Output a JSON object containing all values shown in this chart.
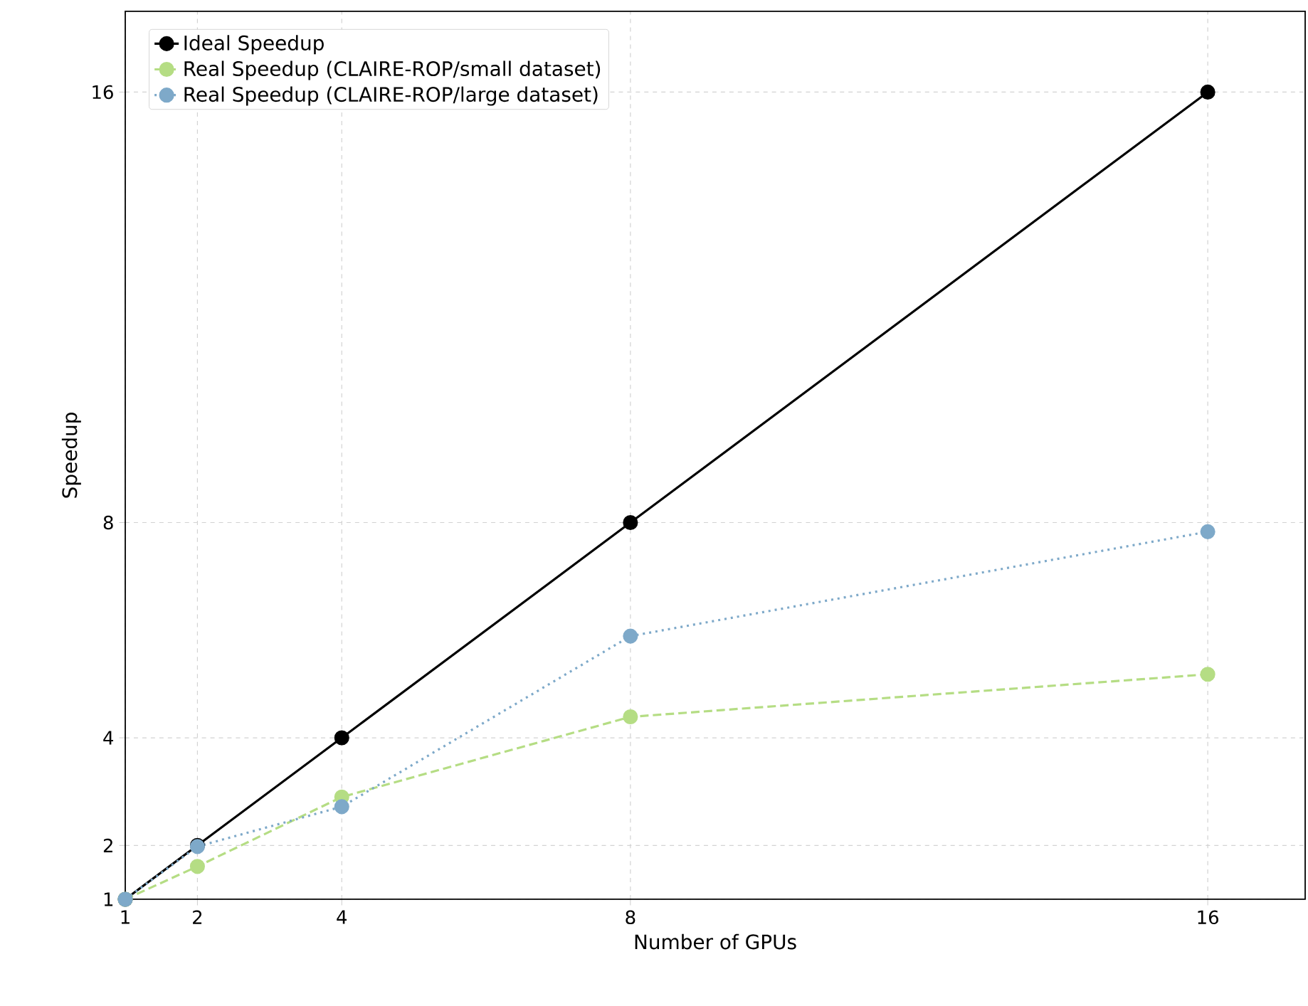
{
  "chart_data": {
    "type": "line",
    "xlabel": "Number of GPUs",
    "ylabel": "Speedup",
    "x": [
      1,
      2,
      4,
      8,
      16
    ],
    "xlim": [
      1,
      17.35
    ],
    "xticks": [
      1,
      2,
      4,
      8,
      16
    ],
    "ylim": [
      1,
      17.5
    ],
    "yticks": [
      1,
      2,
      4,
      8,
      16
    ],
    "grid": true,
    "legend": "top left",
    "marker": "circle",
    "series": [
      {
        "name": "Ideal Speedup",
        "color": "#000000",
        "line_style": "solid",
        "values": [
          1,
          2,
          4,
          8,
          16
        ]
      },
      {
        "name": "Real Speedup (CLAIRE-ROP/small dataset)",
        "color": "#b5dd84",
        "line_style": "dashed",
        "values": [
          1,
          1.61,
          2.9,
          4.39,
          5.18
        ]
      },
      {
        "name": "Real Speedup (CLAIRE-ROP/large dataset)",
        "color": "#7ea9c9",
        "line_style": "dotted",
        "values": [
          1,
          1.98,
          2.72,
          5.89,
          7.83
        ]
      }
    ]
  }
}
